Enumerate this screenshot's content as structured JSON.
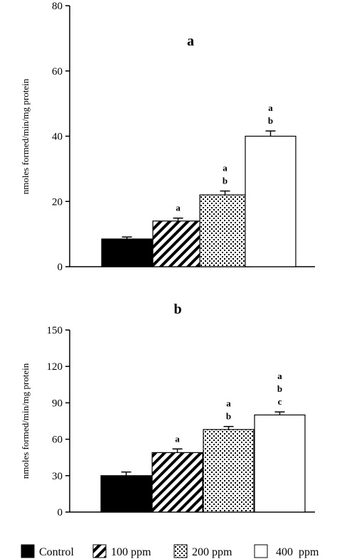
{
  "chart_data": [
    {
      "type": "bar",
      "title": "a",
      "xlabel": "",
      "ylabel": "nmoles formed/min/mg protein",
      "ylim": [
        0,
        80
      ],
      "yticks": [
        0,
        20,
        40,
        60,
        80
      ],
      "categories": [
        "Control",
        "100 ppm",
        "200 ppm",
        "400 ppm"
      ],
      "values": [
        8.5,
        14,
        22,
        40
      ],
      "errors": [
        0.6,
        0.9,
        1.2,
        1.6
      ],
      "significance": [
        [],
        [
          "a"
        ],
        [
          "a",
          "b"
        ],
        [
          "a",
          "b"
        ]
      ],
      "grid": false
    },
    {
      "type": "bar",
      "title": "b",
      "xlabel": "",
      "ylabel": "nmoles formed/min/mg protein",
      "ylim": [
        0,
        150
      ],
      "yticks": [
        0,
        30,
        60,
        90,
        120,
        150
      ],
      "categories": [
        "Control",
        "100 ppm",
        "200 ppm",
        "400 ppm"
      ],
      "values": [
        30,
        49,
        68,
        80
      ],
      "errors": [
        3,
        3,
        2.5,
        2.5
      ],
      "significance": [
        [],
        [
          "a"
        ],
        [
          "a",
          "b"
        ],
        [
          "a",
          "b",
          "c"
        ]
      ],
      "grid": false
    }
  ],
  "legend": {
    "placement": "bottom",
    "items": [
      {
        "label": "Control",
        "pattern": "solid-black"
      },
      {
        "label": "100 ppm",
        "pattern": "diagonal-hatch"
      },
      {
        "label": "200 ppm",
        "pattern": "dotted"
      },
      {
        "label": "400  ppm",
        "pattern": "white"
      }
    ]
  }
}
